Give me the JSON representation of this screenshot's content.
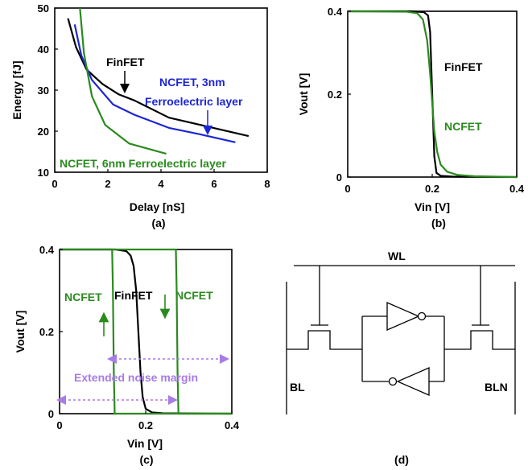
{
  "colors": {
    "finfet": "#000000",
    "ncfet": "#2a8a1e",
    "ncfet_3nm": "#1d25d6",
    "noise_margin": "#a77ce6"
  },
  "chart_data": [
    {
      "id": "a",
      "type": "line",
      "caption": "(a)",
      "xlabel": "Delay [nS]",
      "ylabel": "Energy [fJ]",
      "xlim": [
        0,
        8
      ],
      "ylim": [
        10,
        50
      ],
      "xticks": [
        "0",
        "2",
        "4",
        "6",
        "8"
      ],
      "yticks": [
        "10",
        "20",
        "30",
        "40",
        "50"
      ],
      "series": [
        {
          "name": "FinFET",
          "color": "#000000",
          "x": [
            0.5,
            0.8,
            1.2,
            1.8,
            2.4,
            3.0,
            4.3,
            5.5,
            7.3
          ],
          "y": [
            47.5,
            40.5,
            35.0,
            31.5,
            29.0,
            27.5,
            23.3,
            21.5,
            18.8
          ]
        },
        {
          "name": "NCFET, 3nm Ferroelectric layer",
          "color": "#1d25d6",
          "x": [
            0.75,
            1.0,
            1.4,
            2.2,
            3.0,
            4.3,
            5.5,
            6.8
          ],
          "y": [
            46.0,
            38.5,
            32.5,
            26.5,
            24.0,
            20.8,
            19.2,
            17.3
          ]
        },
        {
          "name": "NCFET, 6nm Ferroelectric layer",
          "color": "#2a8a1e",
          "x": [
            0.95,
            1.1,
            1.4,
            1.9,
            2.8,
            4.2
          ],
          "y": [
            50.0,
            39.0,
            28.5,
            21.5,
            17.0,
            14.5
          ]
        }
      ],
      "annotations": {
        "finfet": "FinFET",
        "ncfet3_line1": "NCFET, 3nm",
        "ncfet3_line2": "Ferroelectric layer",
        "ncfet6": "NCFET, 6nm Ferroelectric layer"
      }
    },
    {
      "id": "b",
      "type": "line",
      "caption": "(b)",
      "xlabel": "Vin [V]",
      "ylabel": "Vout [V]",
      "xlim": [
        0,
        0.4
      ],
      "ylim": [
        0,
        0.4
      ],
      "xticks": [
        "0",
        "0.2",
        "0.4"
      ],
      "yticks": [
        "0",
        "0.2",
        "0.4"
      ],
      "series": [
        {
          "name": "FinFET",
          "color": "#000000",
          "x": [
            0,
            0.15,
            0.18,
            0.19,
            0.195,
            0.2,
            0.205,
            0.21,
            0.22,
            0.25,
            0.4
          ],
          "y": [
            0.4,
            0.4,
            0.398,
            0.39,
            0.35,
            0.2,
            0.05,
            0.01,
            0.003,
            0.001,
            0.0
          ]
        },
        {
          "name": "NCFET",
          "color": "#2a8a1e",
          "x": [
            0,
            0.14,
            0.165,
            0.178,
            0.188,
            0.195,
            0.2,
            0.205,
            0.212,
            0.22,
            0.235,
            0.26,
            0.3,
            0.4
          ],
          "y": [
            0.4,
            0.399,
            0.395,
            0.38,
            0.33,
            0.25,
            0.18,
            0.11,
            0.06,
            0.03,
            0.013,
            0.005,
            0.002,
            0.0
          ]
        }
      ],
      "annotations": {
        "finfet": "FinFET",
        "ncfet": "NCFET"
      }
    },
    {
      "id": "c",
      "type": "line",
      "caption": "(c)",
      "xlabel": "Vin [V]",
      "ylabel": "Vout [V]",
      "xlim": [
        0,
        0.4
      ],
      "ylim": [
        0,
        0.4
      ],
      "xticks": [
        "0",
        "0.2",
        "0.4"
      ],
      "yticks": [
        "0",
        "0.2",
        "0.4"
      ],
      "series": [
        {
          "name": "FinFET",
          "color": "#000000",
          "x": [
            0,
            0.13,
            0.155,
            0.165,
            0.172,
            0.178,
            0.183,
            0.188,
            0.193,
            0.2,
            0.215,
            0.24,
            0.4
          ],
          "y": [
            0.4,
            0.4,
            0.396,
            0.385,
            0.36,
            0.3,
            0.2,
            0.1,
            0.04,
            0.012,
            0.003,
            0.001,
            0.0
          ]
        },
        {
          "name": "NCFET (down sweep)",
          "color": "#2a8a1e",
          "x": [
            0,
            0.27,
            0.272,
            0.274,
            0.276,
            0.4
          ],
          "y": [
            0.4,
            0.4,
            0.3,
            0.1,
            0.0,
            0.0
          ]
        },
        {
          "name": "NCFET (up sweep)",
          "color": "#2a8a1e",
          "x": [
            0.4,
            0.128,
            0.126,
            0.124,
            0.122,
            0.0
          ],
          "y": [
            0.0,
            0.0,
            0.1,
            0.3,
            0.4,
            0.4
          ]
        }
      ],
      "annotations": {
        "ncfet_left": "NCFET",
        "finfet": "FinFET",
        "ncfet_right": "NCFET",
        "noise_margin": "Extended noise margin"
      }
    }
  ],
  "schematic": {
    "caption": "(d)",
    "wl_label": "WL",
    "bl_label": "BL",
    "bln_label": "BLN"
  }
}
